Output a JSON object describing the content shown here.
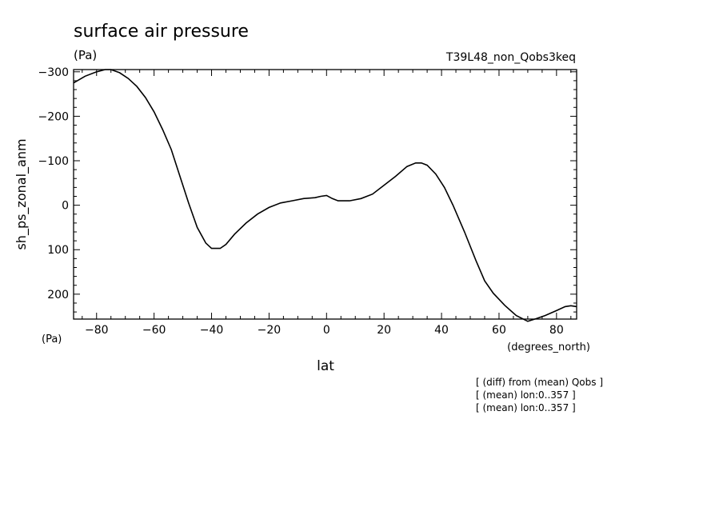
{
  "chart_data": {
    "type": "line",
    "title": "surface air pressure",
    "units": "(Pa)",
    "run_label": "T39L48_non_Qobs3keq",
    "ylabel": "sh_ps_zonal_anm",
    "xlabel": "lat",
    "x_units": "(degrees_north)",
    "y_units": "(Pa)",
    "xlim": [
      -88,
      87
    ],
    "ylim": [
      -305,
      256
    ],
    "y_inverted": true,
    "x_ticks": [
      -80,
      -60,
      -40,
      -20,
      0,
      20,
      40,
      60,
      80
    ],
    "y_ticks": [
      -300,
      -200,
      -100,
      0,
      100,
      200
    ],
    "notes": [
      "[ (diff) from (mean) Qobs ]",
      "[ (mean) lon:0..357 ]",
      "[ (mean) lon:0..357 ]"
    ],
    "series": [
      {
        "x": [
          -88,
          -84,
          -80,
          -77,
          -75,
          -72,
          -69,
          -66,
          -63,
          -60,
          -57,
          -54,
          -51,
          -48,
          -45,
          -42,
          -40,
          -37,
          -35,
          -32,
          -28,
          -24,
          -20,
          -16,
          -12,
          -8,
          -4,
          -2,
          0,
          2,
          4,
          8,
          12,
          16,
          20,
          24,
          28,
          31,
          33,
          35,
          38,
          41,
          44,
          48,
          52,
          55,
          58,
          62,
          66,
          70,
          73,
          76,
          80,
          83,
          85,
          87
        ],
        "y": [
          -275,
          -290,
          -300,
          -305,
          -305,
          -298,
          -285,
          -267,
          -242,
          -210,
          -170,
          -125,
          -65,
          -5,
          50,
          85,
          97,
          97,
          88,
          65,
          40,
          20,
          5,
          -5,
          -10,
          -15,
          -17,
          -20,
          -22,
          -15,
          -10,
          -10,
          -15,
          -25,
          -45,
          -65,
          -87,
          -95,
          -95,
          -90,
          -70,
          -40,
          0,
          60,
          125,
          170,
          198,
          225,
          248,
          261,
          255,
          248,
          237,
          228,
          226,
          228
        ]
      }
    ]
  }
}
